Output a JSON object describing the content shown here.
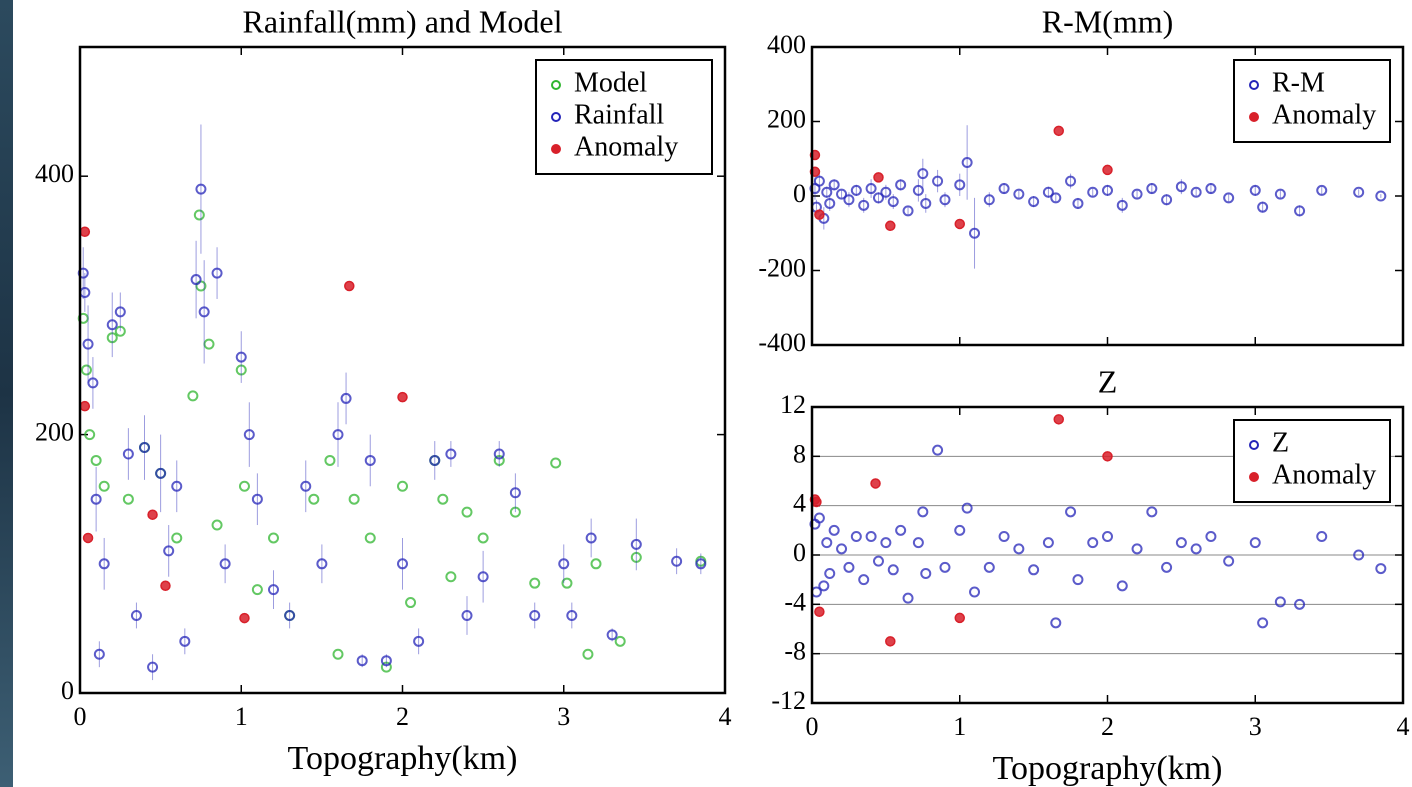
{
  "chart_data": [
    {
      "type": "scatter",
      "title": "Rainfall(mm) and Model",
      "xlabel": "Topography(km)",
      "xlim": [
        0,
        4
      ],
      "ylim": [
        0,
        500
      ],
      "xticks": [
        0,
        1,
        2,
        3,
        4
      ],
      "yticks": [
        0,
        200,
        400
      ],
      "xtick_labels": true,
      "grid": false,
      "legend": "upper right",
      "series": [
        {
          "name": "Model",
          "color": "#2fb52f",
          "marker": "open",
          "x": [
            0.02,
            0.04,
            0.06,
            0.1,
            0.15,
            0.2,
            0.25,
            0.3,
            0.4,
            0.5,
            0.6,
            0.7,
            0.74,
            0.75,
            0.8,
            0.85,
            1.0,
            1.02,
            1.1,
            1.2,
            1.3,
            1.45,
            1.55,
            1.6,
            1.7,
            1.8,
            1.9,
            2.0,
            2.05,
            2.2,
            2.25,
            2.3,
            2.4,
            2.5,
            2.6,
            2.7,
            2.82,
            2.95,
            3.02,
            3.15,
            3.2,
            3.35,
            3.45,
            3.85
          ],
          "values": [
            290,
            250,
            200,
            180,
            160,
            275,
            280,
            150,
            190,
            170,
            120,
            230,
            370,
            315,
            270,
            130,
            250,
            160,
            80,
            120,
            60,
            150,
            180,
            30,
            150,
            120,
            20,
            160,
            70,
            180,
            150,
            90,
            140,
            120,
            180,
            140,
            85,
            178,
            85,
            30,
            100,
            40,
            105,
            102
          ]
        },
        {
          "name": "Rainfall",
          "color": "#2424b8",
          "marker": "open",
          "x": [
            0.02,
            0.03,
            0.05,
            0.08,
            0.1,
            0.12,
            0.15,
            0.2,
            0.25,
            0.3,
            0.35,
            0.4,
            0.45,
            0.5,
            0.55,
            0.6,
            0.65,
            0.72,
            0.75,
            0.77,
            0.85,
            0.9,
            1.0,
            1.05,
            1.1,
            1.2,
            1.3,
            1.4,
            1.5,
            1.6,
            1.65,
            1.75,
            1.8,
            1.9,
            2.0,
            2.1,
            2.2,
            2.3,
            2.4,
            2.5,
            2.6,
            2.7,
            2.82,
            3.0,
            3.05,
            3.17,
            3.3,
            3.45,
            3.7,
            3.85
          ],
          "values": [
            325,
            310,
            270,
            240,
            150,
            30,
            100,
            285,
            295,
            185,
            60,
            190,
            20,
            170,
            110,
            160,
            40,
            320,
            390,
            295,
            325,
            100,
            260,
            200,
            150,
            80,
            60,
            160,
            100,
            200,
            228,
            25,
            180,
            25,
            100,
            40,
            180,
            185,
            60,
            90,
            185,
            155,
            60,
            100,
            60,
            120,
            45,
            115,
            102,
            100
          ],
          "errors": [
            20,
            15,
            30,
            20,
            25,
            10,
            20,
            25,
            15,
            20,
            10,
            25,
            10,
            30,
            20,
            20,
            10,
            30,
            50,
            40,
            20,
            15,
            20,
            25,
            20,
            15,
            10,
            20,
            15,
            25,
            20,
            5,
            20,
            5,
            20,
            10,
            15,
            10,
            15,
            20,
            10,
            15,
            10,
            15,
            10,
            15,
            5,
            20,
            10,
            8
          ]
        },
        {
          "name": "Anomaly",
          "color": "#d8202a",
          "marker": "filled",
          "x": [
            0.03,
            0.03,
            0.05,
            0.45,
            0.53,
            1.02,
            1.67,
            2.0
          ],
          "values": [
            357,
            222,
            120,
            138,
            83,
            58,
            315,
            229
          ]
        }
      ]
    },
    {
      "type": "scatter",
      "title": "R-M(mm)",
      "xlim": [
        0,
        4
      ],
      "ylim": [
        -400,
        400
      ],
      "xticks": [
        0,
        1,
        2,
        3,
        4
      ],
      "yticks": [
        -400,
        -200,
        0,
        200,
        400
      ],
      "xtick_labels": false,
      "grid": false,
      "legend": "upper right",
      "series": [
        {
          "name": "R-M",
          "color": "#2424b8",
          "marker": "open",
          "x": [
            0.02,
            0.03,
            0.05,
            0.08,
            0.1,
            0.12,
            0.15,
            0.2,
            0.25,
            0.3,
            0.35,
            0.4,
            0.45,
            0.5,
            0.55,
            0.6,
            0.65,
            0.72,
            0.75,
            0.77,
            0.85,
            0.9,
            1.0,
            1.05,
            1.1,
            1.2,
            1.3,
            1.4,
            1.5,
            1.6,
            1.65,
            1.75,
            1.8,
            1.9,
            2.0,
            2.1,
            2.2,
            2.3,
            2.4,
            2.5,
            2.6,
            2.7,
            2.82,
            3.0,
            3.05,
            3.17,
            3.3,
            3.45,
            3.7,
            3.85
          ],
          "values": [
            20,
            -30,
            40,
            -60,
            10,
            -20,
            30,
            5,
            -10,
            15,
            -25,
            20,
            -5,
            10,
            -15,
            30,
            -40,
            15,
            60,
            -20,
            40,
            -10,
            30,
            90,
            -100,
            -10,
            20,
            5,
            -15,
            10,
            -5,
            40,
            -20,
            10,
            15,
            -25,
            5,
            20,
            -10,
            25,
            10,
            20,
            -5,
            15,
            -30,
            5,
            -40,
            15,
            10,
            0
          ],
          "errors": [
            30,
            20,
            25,
            30,
            15,
            20,
            15,
            10,
            20,
            15,
            20,
            25,
            15,
            20,
            20,
            15,
            10,
            30,
            40,
            25,
            30,
            20,
            30,
            100,
            95,
            20,
            15,
            10,
            15,
            15,
            10,
            20,
            15,
            10,
            15,
            20,
            10,
            15,
            15,
            20,
            10,
            15,
            10,
            15,
            15,
            10,
            15,
            10,
            8,
            5
          ]
        },
        {
          "name": "Anomaly",
          "color": "#d8202a",
          "marker": "filled",
          "x": [
            0.02,
            0.02,
            0.05,
            0.45,
            0.53,
            1.0,
            1.67,
            2.0
          ],
          "values": [
            110,
            65,
            -50,
            50,
            -80,
            -75,
            175,
            70
          ]
        }
      ]
    },
    {
      "type": "scatter",
      "title": "Z",
      "xlabel": "Topography(km)",
      "xlim": [
        0,
        4
      ],
      "ylim": [
        -12,
        12
      ],
      "xticks": [
        0,
        1,
        2,
        3,
        4
      ],
      "yticks": [
        -12,
        -8,
        -4,
        0,
        4,
        8,
        12
      ],
      "xtick_labels": true,
      "grid": true,
      "legend": "upper right",
      "series": [
        {
          "name": "Z",
          "color": "#2424b8",
          "marker": "open",
          "x": [
            0.02,
            0.03,
            0.05,
            0.08,
            0.1,
            0.12,
            0.15,
            0.2,
            0.25,
            0.3,
            0.35,
            0.4,
            0.45,
            0.5,
            0.55,
            0.6,
            0.65,
            0.72,
            0.75,
            0.77,
            0.85,
            0.9,
            1.0,
            1.05,
            1.1,
            1.2,
            1.3,
            1.4,
            1.5,
            1.6,
            1.65,
            1.75,
            1.8,
            1.9,
            2.0,
            2.1,
            2.2,
            2.3,
            2.4,
            2.5,
            2.6,
            2.7,
            2.82,
            3.0,
            3.05,
            3.17,
            3.3,
            3.45,
            3.7,
            3.85
          ],
          "values": [
            2.5,
            -3,
            3,
            -2.5,
            1,
            -1.5,
            2,
            0.5,
            -1,
            1.5,
            -2,
            1.5,
            -0.5,
            1,
            -1.2,
            2,
            -3.5,
            1,
            3.5,
            -1.5,
            8.5,
            -1,
            2,
            3.8,
            -3,
            -1,
            1.5,
            0.5,
            -1.2,
            1,
            -5.5,
            3.5,
            -2,
            1,
            1.5,
            -2.5,
            0.5,
            3.5,
            -1,
            1,
            0.5,
            1.5,
            -0.5,
            1,
            -5.5,
            -3.8,
            -4,
            1.5,
            0,
            -1.1
          ]
        },
        {
          "name": "Anomaly",
          "color": "#d8202a",
          "marker": "filled",
          "x": [
            0.02,
            0.03,
            0.05,
            0.43,
            0.53,
            1.0,
            1.67,
            2.0
          ],
          "values": [
            4.5,
            4.3,
            -4.6,
            5.8,
            -7,
            -5.1,
            11,
            8
          ]
        }
      ]
    }
  ]
}
